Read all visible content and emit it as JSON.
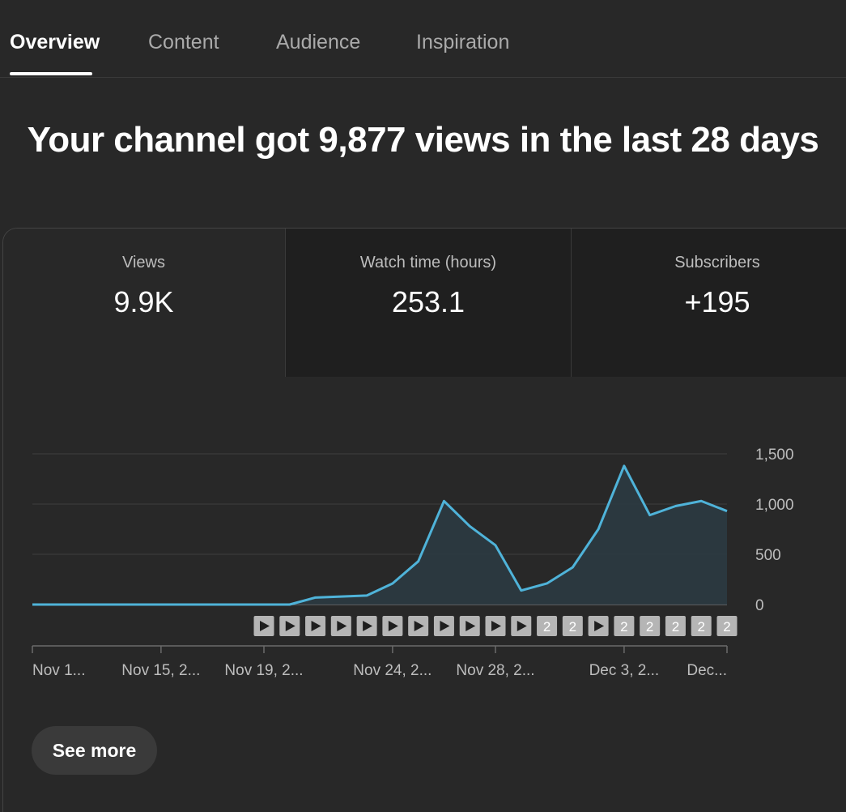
{
  "tabs": [
    {
      "label": "Overview",
      "active": true
    },
    {
      "label": "Content",
      "active": false
    },
    {
      "label": "Audience",
      "active": false
    },
    {
      "label": "Inspiration",
      "active": false
    }
  ],
  "headline": "Your channel got 9,877 views in the last 28 days",
  "metrics": [
    {
      "label": "Views",
      "value": "9.9K"
    },
    {
      "label": "Watch time (hours)",
      "value": "253.1"
    },
    {
      "label": "Subscribers",
      "value": "+195"
    }
  ],
  "chart_data": {
    "type": "area",
    "y_ticks": [
      "1,500",
      "1,000",
      "500",
      "0"
    ],
    "ylim": [
      0,
      1500
    ],
    "grid": true,
    "color": "#4fb3d9",
    "fill": "#2b3a41",
    "points": [
      {
        "day": 0,
        "value": 0
      },
      {
        "day": 1,
        "value": 0
      },
      {
        "day": 2,
        "value": 0
      },
      {
        "day": 3,
        "value": 0
      },
      {
        "day": 4,
        "value": 0
      },
      {
        "day": 5,
        "value": 0
      },
      {
        "day": 6,
        "value": 0
      },
      {
        "day": 7,
        "value": 0
      },
      {
        "day": 8,
        "value": 0
      },
      {
        "day": 9,
        "value": 0
      },
      {
        "day": 10,
        "value": 0
      },
      {
        "day": 11,
        "value": 70
      },
      {
        "day": 12,
        "value": 80
      },
      {
        "day": 13,
        "value": 90
      },
      {
        "day": 14,
        "value": 210
      },
      {
        "day": 15,
        "value": 430
      },
      {
        "day": 16,
        "value": 1030
      },
      {
        "day": 17,
        "value": 780
      },
      {
        "day": 18,
        "value": 590
      },
      {
        "day": 19,
        "value": 140
      },
      {
        "day": 20,
        "value": 210
      },
      {
        "day": 21,
        "value": 370
      },
      {
        "day": 22,
        "value": 750
      },
      {
        "day": 23,
        "value": 1380
      },
      {
        "day": 24,
        "value": 890
      },
      {
        "day": 25,
        "value": 980
      },
      {
        "day": 26,
        "value": 1030
      },
      {
        "day": 27,
        "value": 930
      }
    ],
    "x_labels": [
      {
        "day": 0,
        "label": "Nov 1..."
      },
      {
        "day": 5,
        "label": "Nov 15, 2..."
      },
      {
        "day": 9,
        "label": "Nov 19, 2..."
      },
      {
        "day": 14,
        "label": "Nov 24, 2..."
      },
      {
        "day": 18,
        "label": "Nov 28, 2..."
      },
      {
        "day": 23,
        "label": "Dec 3, 2..."
      },
      {
        "day": 27,
        "label": "Dec..."
      }
    ],
    "markers": [
      {
        "day": 9,
        "kind": "play"
      },
      {
        "day": 10,
        "kind": "play"
      },
      {
        "day": 11,
        "kind": "play"
      },
      {
        "day": 12,
        "kind": "play"
      },
      {
        "day": 13,
        "kind": "play"
      },
      {
        "day": 14,
        "kind": "play"
      },
      {
        "day": 15,
        "kind": "play"
      },
      {
        "day": 16,
        "kind": "play"
      },
      {
        "day": 17,
        "kind": "play"
      },
      {
        "day": 18,
        "kind": "play"
      },
      {
        "day": 19,
        "kind": "play"
      },
      {
        "day": 20,
        "kind": "count",
        "label": "2"
      },
      {
        "day": 21,
        "kind": "count",
        "label": "2"
      },
      {
        "day": 22,
        "kind": "play"
      },
      {
        "day": 23,
        "kind": "count",
        "label": "2"
      },
      {
        "day": 24,
        "kind": "count",
        "label": "2"
      },
      {
        "day": 25,
        "kind": "count",
        "label": "2"
      },
      {
        "day": 26,
        "kind": "count",
        "label": "2"
      },
      {
        "day": 27,
        "kind": "count",
        "label": "2"
      }
    ]
  },
  "see_more_label": "See more"
}
